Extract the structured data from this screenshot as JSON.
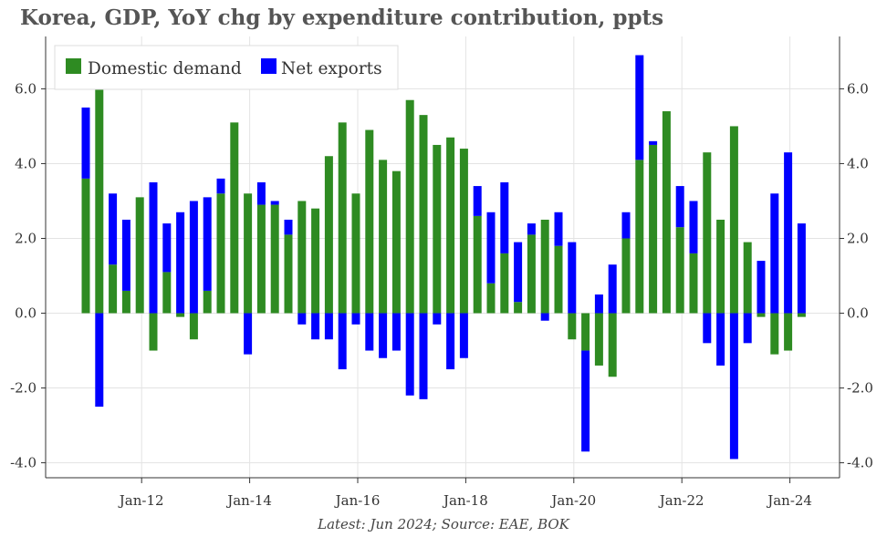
{
  "title": "Korea, GDP, YoY chg by expenditure contribution, ppts",
  "footer": "Latest: Jun 2024; Source: EAE, BOK",
  "colors": {
    "domestic": "#2e8b22",
    "net_exports": "#0000ff"
  },
  "chart_data": {
    "type": "bar",
    "stacked": true,
    "grid": true,
    "legend_position": "top-left",
    "ylim": [
      -4.4,
      7.4
    ],
    "y_ticks": [
      "-4.0",
      "-2.0",
      "0.0",
      "2.0",
      "4.0",
      "6.0"
    ],
    "x_tick_labels": [
      "Jan-12",
      "Jan-14",
      "Jan-16",
      "Jan-18",
      "Jan-20",
      "Jan-22",
      "Jan-24"
    ],
    "categories": [
      "Q1 2011",
      "Q2 2011",
      "Q3 2011",
      "Q4 2011",
      "Q1 2012",
      "Q2 2012",
      "Q3 2012",
      "Q4 2012",
      "Q1 2013",
      "Q2 2013",
      "Q3 2013",
      "Q4 2013",
      "Q1 2014",
      "Q2 2014",
      "Q3 2014",
      "Q4 2014",
      "Q1 2015",
      "Q2 2015",
      "Q3 2015",
      "Q4 2015",
      "Q1 2016",
      "Q2 2016",
      "Q3 2016",
      "Q4 2016",
      "Q1 2017",
      "Q2 2017",
      "Q3 2017",
      "Q4 2017",
      "Q1 2018",
      "Q2 2018",
      "Q3 2018",
      "Q4 2018",
      "Q1 2019",
      "Q2 2019",
      "Q3 2019",
      "Q4 2019",
      "Q1 2020",
      "Q2 2020",
      "Q3 2020",
      "Q4 2020",
      "Q1 2021",
      "Q2 2021",
      "Q3 2021",
      "Q4 2021",
      "Q1 2022",
      "Q2 2022",
      "Q3 2022",
      "Q4 2022",
      "Q1 2023",
      "Q2 2023",
      "Q3 2023",
      "Q4 2023",
      "Q1 2024",
      "Q2 2024"
    ],
    "series": [
      {
        "name": "Domestic demand",
        "values": [
          3.6,
          6.1,
          1.3,
          0.6,
          3.1,
          -1.0,
          1.1,
          -0.1,
          -0.7,
          0.6,
          3.2,
          5.1,
          3.2,
          2.9,
          2.9,
          2.1,
          3.0,
          2.8,
          4.2,
          5.1,
          3.2,
          4.9,
          4.1,
          3.8,
          5.7,
          5.3,
          4.5,
          4.7,
          4.4,
          2.6,
          0.8,
          1.6,
          0.3,
          2.1,
          2.5,
          1.8,
          -0.7,
          -1.0,
          -1.4,
          -1.7,
          2.0,
          4.1,
          4.5,
          5.4,
          2.3,
          1.6,
          4.3,
          2.5,
          5.0,
          1.9,
          -0.1,
          -1.1,
          -1.0,
          -0.1
        ]
      },
      {
        "name": "Net exports",
        "values": [
          1.9,
          -2.5,
          1.9,
          1.9,
          0.0,
          3.5,
          1.3,
          2.7,
          3.0,
          2.5,
          0.4,
          0.0,
          -1.1,
          0.6,
          0.1,
          0.4,
          -0.3,
          -0.7,
          -0.7,
          -1.5,
          -0.3,
          -1.0,
          -1.2,
          -1.0,
          -2.2,
          -2.3,
          -0.3,
          -1.5,
          -1.2,
          0.8,
          1.9,
          1.9,
          1.6,
          0.3,
          -0.2,
          0.9,
          1.9,
          -2.7,
          0.5,
          1.3,
          0.7,
          2.8,
          0.1,
          0.0,
          1.1,
          1.4,
          -0.8,
          -1.4,
          -3.9,
          -0.8,
          1.4,
          3.2,
          4.3,
          2.4
        ]
      }
    ]
  }
}
